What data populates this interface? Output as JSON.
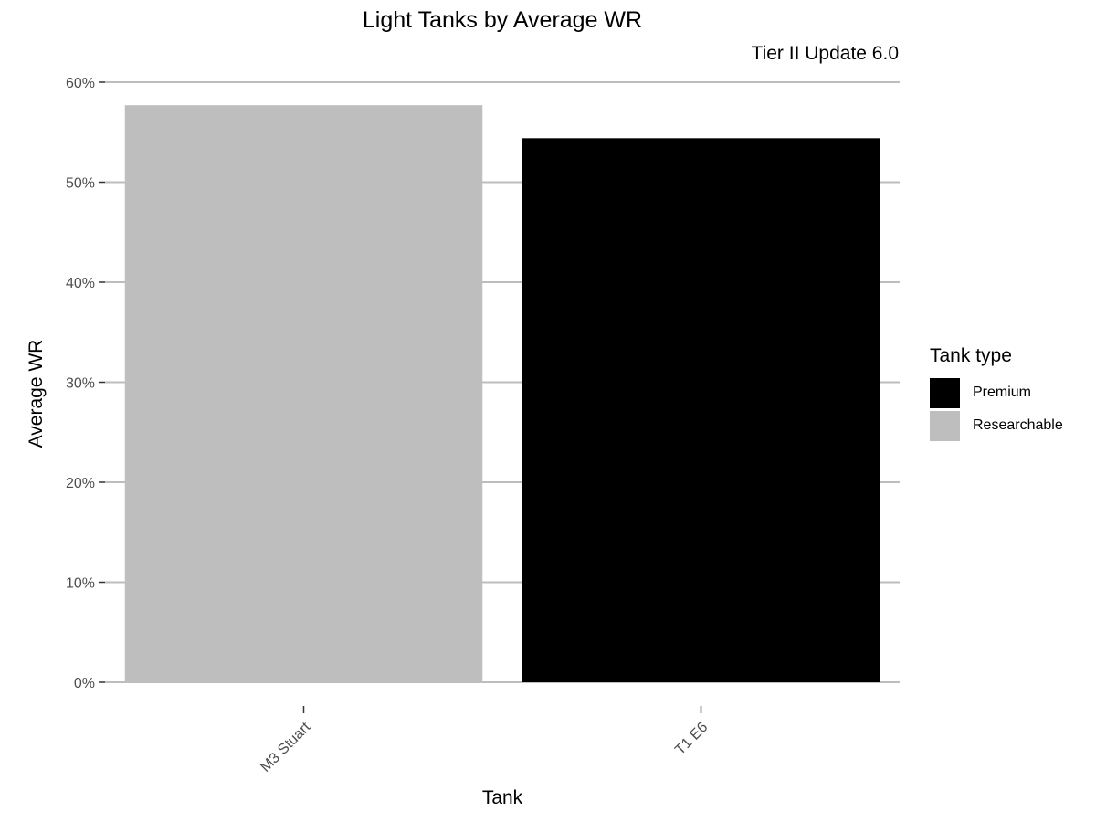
{
  "chart_data": {
    "type": "bar",
    "title": "Light Tanks by Average WR",
    "subtitle": "Tier II Update 6.0",
    "xlabel": "Tank",
    "ylabel": "Average WR",
    "categories": [
      "M3 Stuart",
      "T1 E6"
    ],
    "values": [
      57.7,
      54.4
    ],
    "bar_types": [
      "Researchable",
      "Premium"
    ],
    "ylim": [
      0,
      60
    ],
    "y_ticks": [
      0,
      10,
      20,
      30,
      40,
      50,
      60
    ],
    "y_tick_labels": [
      "0%",
      "10%",
      "20%",
      "30%",
      "40%",
      "50%",
      "60%"
    ],
    "grid": true,
    "legend": {
      "title": "Tank type",
      "placement": "right",
      "items": [
        {
          "label": "Premium",
          "color": "#000000"
        },
        {
          "label": "Researchable",
          "color": "#bebebe"
        }
      ]
    }
  }
}
